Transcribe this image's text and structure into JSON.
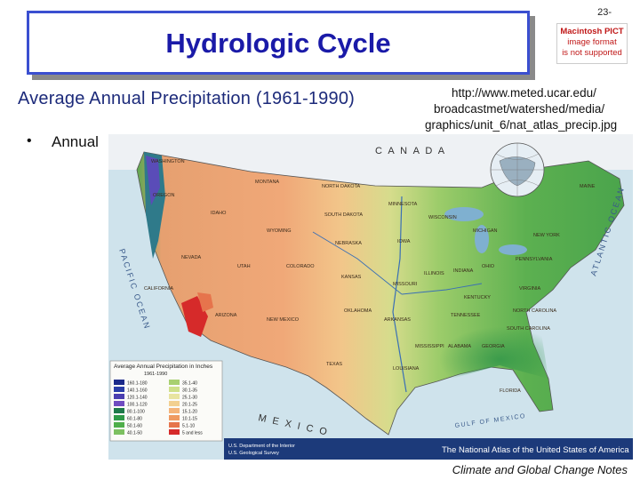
{
  "page_number": "23-",
  "title": "Hydrologic Cycle",
  "pict_notice": [
    "Macintosh PICT",
    "image format",
    "is not supported"
  ],
  "subtitle": "Average Annual Precipitation (1961-1990)",
  "source_url": [
    "http://www.meted.ucar.edu/",
    "broadcastmet/watershed/media/",
    "graphics/unit_6/nat_atlas_precip.jpg"
  ],
  "bullet": {
    "marker": "•",
    "text": "Annual"
  },
  "map": {
    "labels": {
      "canada": "C A N A D A",
      "pacific": "PACIFIC OCEAN",
      "atlantic": "ATLANTIC OCEAN",
      "mexico": "M E X I C O",
      "gulf": "GULF OF MEXICO"
    },
    "states": [
      "MONTANA",
      "NORTH DAKOTA",
      "SOUTH DAKOTA",
      "WYOMING",
      "NEBRASKA",
      "IOWA",
      "IDAHO",
      "NEVADA",
      "UTAH",
      "COLORADO",
      "KANSAS",
      "MISSOURI",
      "ILLINOIS",
      "INDIANA",
      "OHIO",
      "KENTUCKY",
      "TENNESSEE",
      "OKLAHOMA",
      "TEXAS",
      "NEW MEXICO",
      "ARIZONA",
      "OREGON",
      "WASHINGTON",
      "CALIFORNIA",
      "MAINE",
      "NEW YORK",
      "PENNSYLVANIA",
      "VIRGINIA",
      "NORTH CAROLINA",
      "GEORGIA",
      "ALABAMA",
      "MISSISSIPPI",
      "ARKANSAS",
      "LOUISIANA",
      "FLORIDA",
      "MICHIGAN",
      "WISCONSIN",
      "MINNESOTA",
      "SOUTH CAROLINA"
    ],
    "legend": {
      "title": "Average Annual Precipitation in Inches",
      "years": "1961-1990",
      "classes": [
        {
          "label": "160.1-180",
          "color": "#1b2a8a"
        },
        {
          "label": "140.1-160",
          "color": "#2a3ea8"
        },
        {
          "label": "120.1-140",
          "color": "#4b3fb0"
        },
        {
          "label": "100.1-120",
          "color": "#6f4cc0"
        },
        {
          "label": "80.1-100",
          "color": "#1e7a4a"
        },
        {
          "label": "60.1-80",
          "color": "#2f9a48"
        },
        {
          "label": "50.1-60",
          "color": "#4fae4a"
        },
        {
          "label": "40.1-50",
          "color": "#7cc060"
        },
        {
          "label": "35.1-40",
          "color": "#a8d070"
        },
        {
          "label": "30.1-35",
          "color": "#cfe08a"
        },
        {
          "label": "25.1-30",
          "color": "#e8e4a0"
        },
        {
          "label": "20.1-25",
          "color": "#f2d090"
        },
        {
          "label": "15.1-20",
          "color": "#f4b47a"
        },
        {
          "label": "10.1-15",
          "color": "#ef9a62"
        },
        {
          "label": "5.1-10",
          "color": "#e6744c"
        },
        {
          "label": "5 and less",
          "color": "#d62a2a"
        }
      ]
    },
    "agency": [
      "U.S. Department of the Interior",
      "U.S. Geological Survey"
    ],
    "atlas_title": "The National Atlas of the United States of America"
  },
  "footer": "Climate and Global Change Notes"
}
